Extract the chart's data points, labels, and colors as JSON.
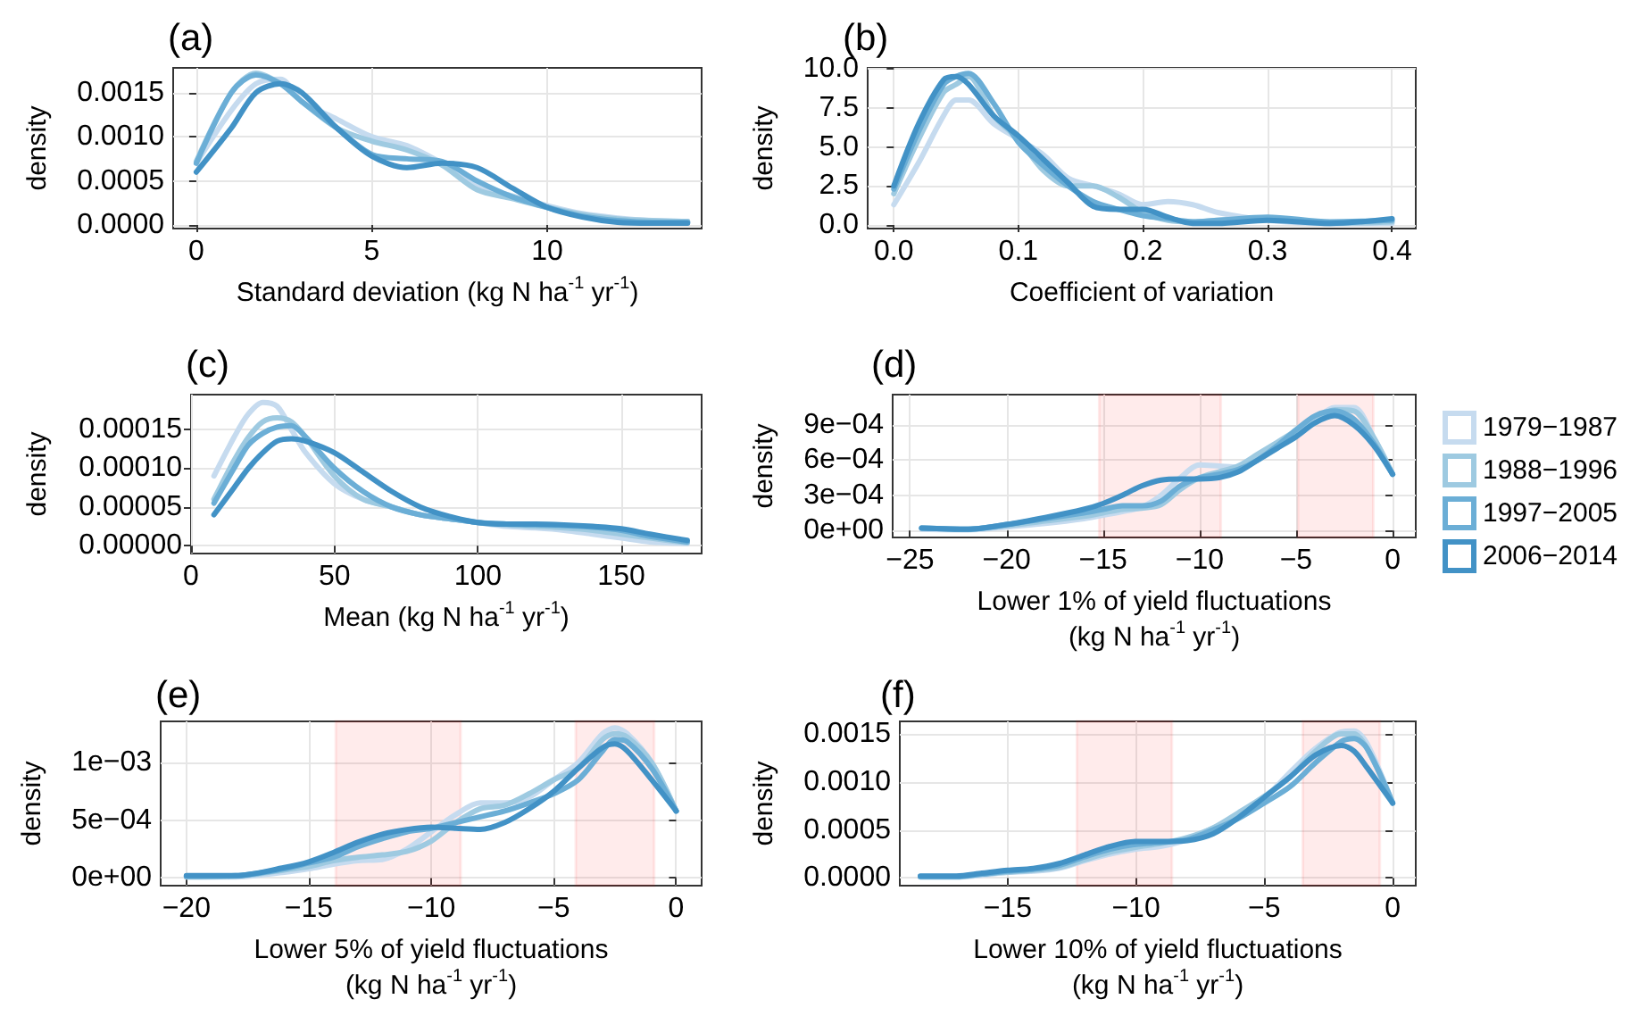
{
  "chart_data": [
    {
      "type": "line",
      "title": "(a)",
      "xlabel": "Standard deviation (kg N ha$^{-1}$ yr$^{-1}$)",
      "ylabel": "density",
      "marker": "none",
      "grid": true,
      "xlim": [
        -0.66,
        14.4
      ],
      "xticks": [
        0,
        5,
        10
      ],
      "ylim": [
        -4e-05,
        0.00178
      ],
      "yticks": [
        {
          "value": 0,
          "label": "0.0000"
        },
        {
          "value": 0.0005,
          "label": "0.0005"
        },
        {
          "value": 0.001,
          "label": "0.0010"
        },
        {
          "value": 0.0015,
          "label": "0.0015"
        }
      ],
      "x": [
        0,
        1,
        1.7,
        2.4,
        3,
        4,
        5,
        6,
        7,
        8,
        9,
        10,
        11,
        12,
        13,
        14
      ],
      "series": [
        {
          "color": "#c6dbef",
          "values": [
            0.0007,
            0.0013,
            0.0016,
            0.00165,
            0.0014,
            0.0012,
            0.001,
            0.0009,
            0.0007,
            0.00045,
            0.00033,
            0.00022,
            0.00013,
            8e-05,
            5e-05,
            4e-05
          ]
        },
        {
          "color": "#9ecae1",
          "values": [
            0.00072,
            0.0015,
            0.00172,
            0.0016,
            0.0014,
            0.0011,
            0.00095,
            0.00085,
            0.00068,
            0.0004,
            0.0003,
            0.0002,
            0.00012,
            7e-05,
            5e-05,
            4e-05
          ]
        },
        {
          "color": "#6baed6",
          "values": [
            0.0007,
            0.0015,
            0.0017,
            0.0016,
            0.0014,
            0.0011,
            0.0008,
            0.00075,
            0.00072,
            0.0005,
            0.00032,
            0.0002,
            0.0001,
            5e-05,
            3e-05,
            3e-05
          ]
        },
        {
          "color": "#4292c6",
          "values": [
            0.0006,
            0.0011,
            0.0015,
            0.0016,
            0.0015,
            0.0011,
            0.00078,
            0.00065,
            0.0007,
            0.00065,
            0.00042,
            0.0002,
            9e-05,
            3e-05,
            2e-05,
            2e-05
          ]
        }
      ]
    },
    {
      "type": "line",
      "title": "(b)",
      "xlabel": "Coefficient of variation",
      "ylabel": "density",
      "marker": "none",
      "grid": true,
      "xlim": [
        -0.021,
        0.419
      ],
      "xticks": [
        {
          "value": 0,
          "label": "0.0"
        },
        0.1,
        0.2,
        0.3,
        0.4
      ],
      "ylim": [
        -0.23,
        10.06
      ],
      "yticks": [
        {
          "value": 0,
          "label": "0.0"
        },
        2.5,
        {
          "value": 5,
          "label": "5.0"
        },
        7.5,
        {
          "value": 10,
          "label": "10.0"
        }
      ],
      "x": [
        0,
        0.02,
        0.04,
        0.05,
        0.06,
        0.08,
        0.1,
        0.12,
        0.14,
        0.16,
        0.18,
        0.2,
        0.22,
        0.24,
        0.26,
        0.3,
        0.35,
        0.4
      ],
      "series": [
        {
          "color": "#c6dbef",
          "values": [
            1.3,
            4,
            7,
            8,
            8,
            6.5,
            5.5,
            4.5,
            3,
            2.5,
            2,
            1.3,
            1.5,
            1.3,
            0.8,
            0.3,
            0.1,
            0.1
          ]
        },
        {
          "color": "#9ecae1",
          "values": [
            2,
            5.5,
            8.5,
            9,
            9.5,
            7,
            5.5,
            3.5,
            2.5,
            2.5,
            1.8,
            0.8,
            0.3,
            0.2,
            0.3,
            0.4,
            0.1,
            0.2
          ]
        },
        {
          "color": "#6baed6",
          "values": [
            2.3,
            6,
            9,
            9.5,
            9.7,
            7.8,
            5.3,
            3.8,
            2.5,
            1.5,
            1,
            0.6,
            0.4,
            0.2,
            0.3,
            0.5,
            0.2,
            0.3
          ]
        },
        {
          "color": "#4292c6",
          "values": [
            2.5,
            6.5,
            9.3,
            9.5,
            9,
            7,
            5.7,
            4.2,
            2.7,
            1.2,
            1,
            1,
            0.5,
            0.1,
            0.1,
            0.3,
            0.1,
            0.4
          ]
        }
      ]
    },
    {
      "type": "line",
      "title": "(c)",
      "xlabel": "Mean (kg N ha$^{-1}$ yr$^{-1}$)",
      "ylabel": "density",
      "marker": "none",
      "grid": true,
      "xlim": [
        0,
        178
      ],
      "xticks": [
        0,
        50,
        100,
        150
      ],
      "ylim": [
        -1e-05,
        0.000195
      ],
      "yticks": [
        {
          "value": 0,
          "label": "0.00000"
        },
        {
          "value": 5e-05,
          "label": "0.00005"
        },
        {
          "value": 0.0001,
          "label": "0.00010"
        },
        {
          "value": 0.00015,
          "label": "0.00015"
        }
      ],
      "x": [
        8,
        15,
        20,
        25,
        30,
        35,
        40,
        50,
        60,
        70,
        80,
        90,
        100,
        110,
        120,
        130,
        140,
        150,
        160,
        173
      ],
      "series": [
        {
          "color": "#c6dbef",
          "values": [
            9e-05,
            0.00014,
            0.00017,
            0.000185,
            0.00018,
            0.00015,
            0.00012,
            8e-05,
            6e-05,
            5e-05,
            4e-05,
            3.5e-05,
            3e-05,
            2.5e-05,
            2.3e-05,
            2e-05,
            1.5e-05,
            1e-05,
            5e-06,
            3e-06
          ]
        },
        {
          "color": "#9ecae1",
          "values": [
            6e-05,
            0.00011,
            0.00014,
            0.00016,
            0.000165,
            0.00016,
            0.00014,
            9e-05,
            6e-05,
            5e-05,
            4e-05,
            3.5e-05,
            3e-05,
            2.7e-05,
            2.5e-05,
            2.3e-05,
            2e-05,
            1.5e-05,
            1e-05,
            4e-06
          ]
        },
        {
          "color": "#6baed6",
          "values": [
            5.5e-05,
            0.0001,
            0.00013,
            0.000145,
            0.000153,
            0.000155,
            0.00014,
            0.0001,
            7e-05,
            5e-05,
            4e-05,
            3.5e-05,
            3e-05,
            2.8e-05,
            2.7e-05,
            2.6e-05,
            2.4e-05,
            2e-05,
            1.2e-05,
            5e-06
          ]
        },
        {
          "color": "#4292c6",
          "values": [
            4e-05,
            7.5e-05,
            0.0001,
            0.00012,
            0.000135,
            0.000138,
            0.000135,
            0.00012,
            9.5e-05,
            7e-05,
            5e-05,
            3.8e-05,
            3e-05,
            2.8e-05,
            2.8e-05,
            2.7e-05,
            2.5e-05,
            2.2e-05,
            1.5e-05,
            7e-06
          ]
        }
      ]
    },
    {
      "type": "line",
      "title": "(d)",
      "xlabel": "Lower 1% of yield fluctuations\n(kg N ha$^{-1}$ yr$^{-1}$)",
      "ylabel": "density",
      "marker": "none",
      "grid": true,
      "legend": "right",
      "xlim": [
        -25.9,
        1.2
      ],
      "xticks": [
        {
          "value": -25,
          "label": "−25"
        },
        {
          "value": -20,
          "label": "−20"
        },
        {
          "value": -15,
          "label": "−15"
        },
        {
          "value": -10,
          "label": "−10"
        },
        {
          "value": -5,
          "label": "−5"
        },
        0
      ],
      "ylim": [
        -6e-05,
        0.00116
      ],
      "yticks": [
        {
          "value": 0,
          "label": "0e+00"
        },
        {
          "value": 0.0003,
          "label": "3e−04"
        },
        {
          "value": 0.0006,
          "label": "6e−04"
        },
        {
          "value": 0.0009,
          "label": "9e−04"
        }
      ],
      "bands": [
        {
          "axis": "x",
          "from": -15.2,
          "to": -8.9,
          "color": "#ff0000"
        },
        {
          "axis": "x",
          "from": -4.9,
          "to": -1,
          "color": "#ff0000"
        }
      ],
      "x": [
        -24.4,
        -22,
        -20,
        -18,
        -16,
        -15,
        -14,
        -13,
        -12,
        -11,
        -10,
        -9,
        -8,
        -7,
        -6,
        -5,
        -4,
        -3,
        -2,
        -1,
        0
      ],
      "series": [
        {
          "name": "1979−1987",
          "color": "#c6dbef",
          "values": [
            1e-05,
            5e-06,
            3e-05,
            6e-05,
            0.0001,
            0.00013,
            0.00016,
            0.0002,
            0.0003,
            0.00045,
            0.00056,
            0.00055,
            0.00054,
            0.0006,
            0.0007,
            0.00082,
            0.00095,
            0.00105,
            0.00105,
            0.0008,
            0.00048
          ]
        },
        {
          "name": "1988−1996",
          "color": "#9ecae1",
          "values": [
            2e-05,
            1e-05,
            4e-05,
            8e-05,
            0.00012,
            0.00015,
            0.00018,
            0.00019,
            0.00022,
            0.00035,
            0.00045,
            0.0005,
            0.00055,
            0.00065,
            0.00075,
            0.00085,
            0.00092,
            0.00103,
            0.00102,
            0.0008,
            0.00048
          ]
        },
        {
          "name": "1997−2005",
          "color": "#6baed6",
          "values": [
            2e-05,
            1e-05,
            5e-05,
            0.0001,
            0.00015,
            0.00018,
            0.00021,
            0.00021,
            0.00025,
            0.00038,
            0.00045,
            0.00048,
            0.00052,
            0.0006,
            0.00072,
            0.00086,
            0.00098,
            0.00102,
            0.00095,
            0.00075,
            0.00048
          ]
        },
        {
          "name": "2006−2014",
          "color": "#4292c6",
          "values": [
            2e-05,
            1e-05,
            5e-05,
            0.00011,
            0.00018,
            0.00023,
            0.0003,
            0.00038,
            0.00043,
            0.00044,
            0.00044,
            0.00045,
            0.0005,
            0.0006,
            0.0007,
            0.0008,
            0.00092,
            0.00098,
            0.0009,
            0.00073,
            0.00048
          ]
        }
      ]
    },
    {
      "type": "line",
      "title": "(e)",
      "xlabel": "Lower 5% of yield fluctuations\n(kg N ha$^{-1}$ yr$^{-1}$)",
      "ylabel": "density",
      "marker": "none",
      "grid": true,
      "xlim": [
        -21.05,
        1.04
      ],
      "xticks": [
        {
          "value": -20,
          "label": "−20"
        },
        {
          "value": -15,
          "label": "−15"
        },
        {
          "value": -10,
          "label": "−10"
        },
        {
          "value": -5,
          "label": "−5"
        },
        0
      ],
      "ylim": [
        -6.6e-05,
        0.001356
      ],
      "yticks": [
        {
          "value": 0,
          "label": "0e+00"
        },
        {
          "value": 0.0005,
          "label": "5e−04"
        },
        {
          "value": 0.001,
          "label": "1e−03"
        }
      ],
      "bands": [
        {
          "axis": "x",
          "from": -13.9,
          "to": -8.8,
          "color": "#ff0000"
        },
        {
          "axis": "x",
          "from": -4.1,
          "to": -0.9,
          "color": "#ff0000"
        }
      ],
      "x": [
        -20,
        -18,
        -16,
        -15,
        -14,
        -13,
        -12,
        -11,
        -10,
        -9,
        -8,
        -7,
        -6,
        -5,
        -4,
        -3,
        -2.5,
        -2,
        -1,
        0
      ],
      "series": [
        {
          "color": "#c6dbef",
          "values": [
            1e-05,
            1e-05,
            5e-05,
            8e-05,
            0.00012,
            0.00015,
            0.00016,
            0.00025,
            0.0004,
            0.00055,
            0.00065,
            0.00065,
            0.0007,
            0.00085,
            0.001,
            0.00125,
            0.0013,
            0.00125,
            0.001,
            0.00058
          ]
        },
        {
          "color": "#9ecae1",
          "values": [
            1e-05,
            1.5e-05,
            7e-05,
            0.0001,
            0.00015,
            0.00018,
            0.0002,
            0.00023,
            0.00032,
            0.00048,
            0.0006,
            0.00063,
            0.00073,
            0.00085,
            0.00095,
            0.0012,
            0.00125,
            0.00122,
            0.001,
            0.00058
          ]
        },
        {
          "color": "#6baed6",
          "values": [
            1.5e-05,
            2e-05,
            8e-05,
            0.00013,
            0.00018,
            0.00027,
            0.00034,
            0.0004,
            0.00043,
            0.00048,
            0.00053,
            0.00058,
            0.00065,
            0.00073,
            0.00085,
            0.0011,
            0.0012,
            0.00118,
            0.00095,
            0.00058
          ]
        },
        {
          "color": "#4292c6",
          "values": [
            2e-05,
            2e-05,
            9e-05,
            0.00014,
            0.00022,
            0.00031,
            0.00038,
            0.00042,
            0.00044,
            0.00043,
            0.00042,
            0.00048,
            0.0006,
            0.00075,
            0.00095,
            0.00113,
            0.00116,
            0.0011,
            0.00085,
            0.00058
          ]
        }
      ]
    },
    {
      "type": "line",
      "title": "(f)",
      "xlabel": "Lower 10% of yield fluctuations\n(kg N ha$^{-1}$ yr$^{-1}$)",
      "ylabel": "density",
      "marker": "none",
      "grid": true,
      "xlim": [
        -19.2,
        0.9
      ],
      "xticks": [
        {
          "value": -15,
          "label": "−15"
        },
        {
          "value": -10,
          "label": "−10"
        },
        {
          "value": -5,
          "label": "−5"
        },
        0
      ],
      "ylim": [
        -8e-05,
        0.00163
      ],
      "yticks": [
        {
          "value": 0,
          "label": "0.0000"
        },
        {
          "value": 0.0005,
          "label": "0.0005"
        },
        {
          "value": 0.001,
          "label": "0.0010"
        },
        {
          "value": 0.0015,
          "label": "0.0015"
        }
      ],
      "bands": [
        {
          "axis": "x",
          "from": -12.3,
          "to": -8.6,
          "color": "#ff0000"
        },
        {
          "axis": "x",
          "from": -3.5,
          "to": -0.5,
          "color": "#ff0000"
        }
      ],
      "x": [
        -18.4,
        -17,
        -16,
        -15,
        -14,
        -13,
        -12,
        -11,
        -10,
        -9,
        -8,
        -7,
        -6,
        -5,
        -4,
        -3,
        -2,
        -1.5,
        -1,
        0
      ],
      "series": [
        {
          "color": "#c6dbef",
          "values": [
            1e-05,
            1e-05,
            3e-05,
            6e-05,
            7e-05,
            0.0001,
            0.00018,
            0.00025,
            0.0003,
            0.00033,
            0.0004,
            0.00052,
            0.00065,
            0.00083,
            0.0011,
            0.00135,
            0.00152,
            0.00153,
            0.0014,
            0.00078
          ]
        },
        {
          "color": "#9ecae1",
          "values": [
            1e-05,
            1e-05,
            4e-05,
            6e-05,
            8e-05,
            0.00011,
            0.00019,
            0.00027,
            0.00032,
            0.00036,
            0.00042,
            0.00052,
            0.00068,
            0.00085,
            0.00105,
            0.00132,
            0.0015,
            0.0015,
            0.00135,
            0.00078
          ]
        },
        {
          "color": "#6baed6",
          "values": [
            1.5e-05,
            1.5e-05,
            4e-05,
            7e-05,
            9e-05,
            0.00013,
            0.00022,
            0.0003,
            0.00035,
            0.00037,
            0.0004,
            0.0005,
            0.00062,
            0.00078,
            0.00095,
            0.0012,
            0.00142,
            0.00145,
            0.00135,
            0.00078
          ]
        },
        {
          "color": "#4292c6",
          "values": [
            2e-05,
            2e-05,
            5e-05,
            8e-05,
            0.0001,
            0.00015,
            0.00024,
            0.00033,
            0.00038,
            0.00038,
            0.00039,
            0.00046,
            0.00063,
            0.00084,
            0.00105,
            0.00128,
            0.00138,
            0.00132,
            0.00115,
            0.00078
          ]
        }
      ]
    }
  ]
}
